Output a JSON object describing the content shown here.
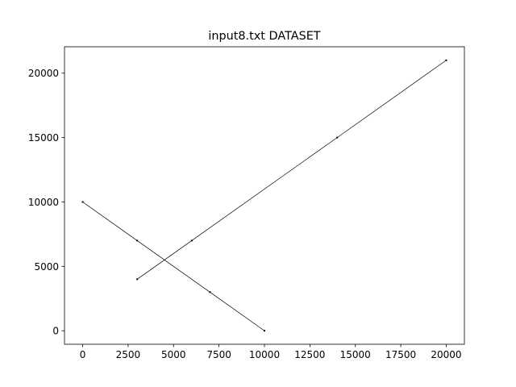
{
  "chart_data": {
    "type": "line",
    "title": "input8.txt DATASET",
    "xlabel": "",
    "ylabel": "",
    "xlim": [
      -1000,
      21000
    ],
    "ylim": [
      -1050,
      22050
    ],
    "x_ticks": [
      0,
      2500,
      5000,
      7500,
      10000,
      12500,
      15000,
      17500,
      20000
    ],
    "x_tick_labels": [
      "0",
      "2500",
      "5000",
      "7500",
      "10000",
      "12500",
      "15000",
      "17500",
      "20000"
    ],
    "y_ticks": [
      0,
      5000,
      10000,
      15000,
      20000
    ],
    "y_tick_labels": [
      "0",
      "5000",
      "10000",
      "15000",
      "20000"
    ],
    "grid": false,
    "legend": false,
    "series": [
      {
        "color": "#000000",
        "points": [
          {
            "x": 0,
            "y": 10000
          },
          {
            "x": 3000,
            "y": 7000
          },
          {
            "x": 7000,
            "y": 3000
          },
          {
            "x": 10000,
            "y": 0
          }
        ]
      },
      {
        "color": "#000000",
        "points": [
          {
            "x": 3000,
            "y": 4000
          },
          {
            "x": 6000,
            "y": 7000
          },
          {
            "x": 14000,
            "y": 15000
          },
          {
            "x": 20000,
            "y": 21000
          }
        ]
      }
    ]
  }
}
